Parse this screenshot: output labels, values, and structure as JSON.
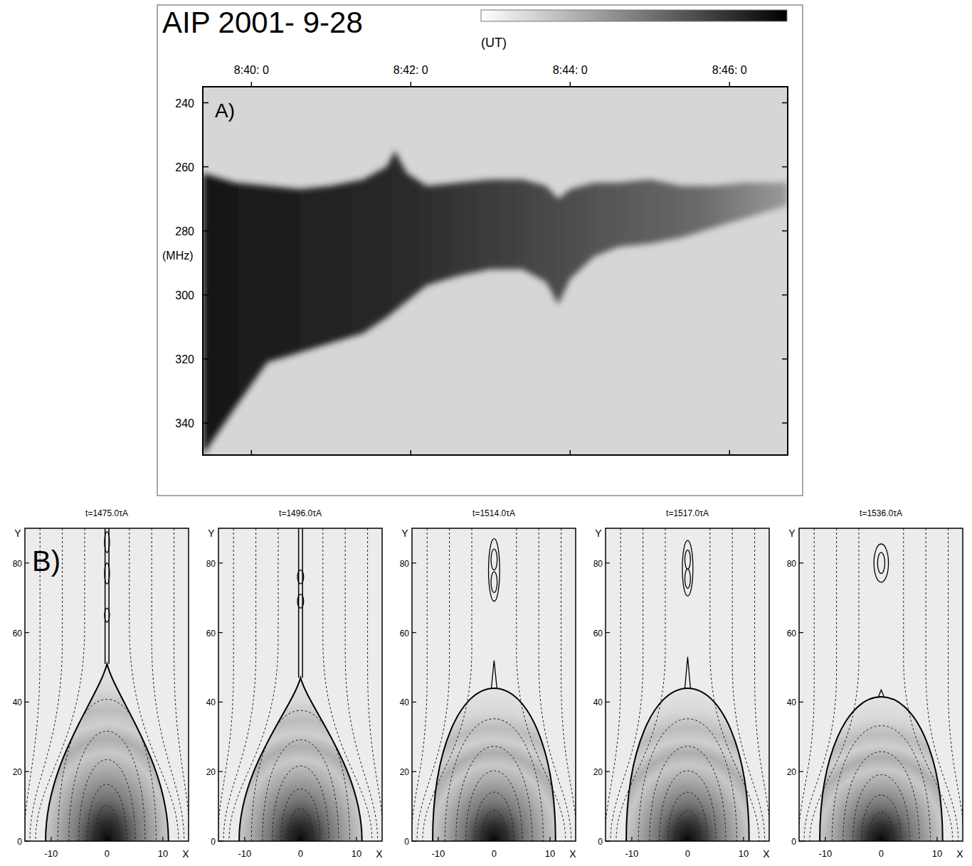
{
  "chart_data": [
    {
      "type": "spectrogram",
      "title": "AIP 2001- 9-28",
      "panel_label": "A)",
      "x_label": "(UT)",
      "y_label": "(MHz)",
      "xlim": [
        39.39,
        46.73
      ],
      "ylim": [
        235,
        350
      ],
      "xticks": [
        {
          "value": 40,
          "label": "8:40: 0"
        },
        {
          "value": 42,
          "label": "8:42: 0"
        },
        {
          "value": 44,
          "label": "8:44: 0"
        },
        {
          "value": 46,
          "label": "8:46: 0"
        }
      ],
      "yticks": [
        240,
        260,
        280,
        300,
        320,
        340
      ],
      "x": [
        39.39,
        39.8,
        40.2,
        40.6,
        41.0,
        41.4,
        41.7,
        41.8,
        41.95,
        42.2,
        42.6,
        43.0,
        43.4,
        43.7,
        43.85,
        44.0,
        44.3,
        44.6,
        45.0,
        45.4,
        45.8,
        46.2,
        46.73
      ],
      "band": {
        "low": [
          262,
          265,
          266,
          267,
          266,
          264,
          260,
          255,
          262,
          266,
          265,
          264,
          264,
          266,
          270,
          267,
          265,
          265,
          264,
          266,
          266,
          265,
          265
        ],
        "high": [
          350,
          335,
          321,
          318,
          315,
          312,
          307,
          305,
          302,
          297,
          294,
          292,
          292,
          296,
          303,
          295,
          288,
          285,
          284,
          282,
          279,
          276,
          272
        ]
      }
    },
    {
      "type": "contour",
      "title": "t=1475.0τA",
      "panel_label": "B)",
      "x_label": "X",
      "y_label": "Y",
      "xlim": [
        -14.7,
        14.6
      ],
      "ylim": [
        0,
        90
      ],
      "xticks": [
        -10,
        0,
        10
      ],
      "yticks": [
        0,
        20,
        40,
        60,
        80
      ],
      "footpoints": [
        -11,
        11
      ],
      "arch_top": 51,
      "xpoint_y": 51,
      "sheet_top": 90,
      "islands": [
        {
          "y": 86,
          "height": 6,
          "width": 0.9
        },
        {
          "y": 77,
          "height": 6,
          "width": 0.9
        },
        {
          "y": 65,
          "height": 4,
          "width": 0.9
        }
      ]
    },
    {
      "type": "contour",
      "title": "t=1496.0τA",
      "x_label": "X",
      "y_label": "Y",
      "xlim": [
        -14.7,
        14.6
      ],
      "ylim": [
        0,
        90
      ],
      "xticks": [
        -10,
        0,
        10
      ],
      "yticks": [
        0,
        20,
        40,
        60,
        80
      ],
      "footpoints": [
        -11,
        11
      ],
      "arch_top": 47,
      "xpoint_y": 47,
      "sheet_top": 90,
      "islands": [
        {
          "y": 76,
          "height": 4,
          "width": 1.1
        },
        {
          "y": 69,
          "height": 4,
          "width": 1.1
        }
      ]
    },
    {
      "type": "contour",
      "title": "t=1514.0τA",
      "x_label": "X",
      "y_label": "Y",
      "xlim": [
        -14.7,
        14.6
      ],
      "ylim": [
        0,
        90
      ],
      "xticks": [
        -10,
        0,
        10
      ],
      "yticks": [
        0,
        20,
        40,
        60,
        80
      ],
      "footpoints": [
        -11,
        11
      ],
      "arch_top": 44,
      "xpoint_y": 52,
      "sheet_top": null,
      "islands": [
        {
          "y": 78,
          "height": 18,
          "width": 2.0
        },
        {
          "y": 81,
          "height": 6,
          "width": 1.1
        },
        {
          "y": 74.5,
          "height": 6,
          "width": 1.1
        }
      ]
    },
    {
      "type": "contour",
      "title": "t=1517.0τA",
      "x_label": "X",
      "y_label": "Y",
      "xlim": [
        -14.7,
        14.6
      ],
      "ylim": [
        0,
        90
      ],
      "xticks": [
        -10,
        0,
        10
      ],
      "yticks": [
        0,
        20,
        40,
        60,
        80
      ],
      "footpoints": [
        -11,
        11
      ],
      "arch_top": 44,
      "xpoint_y": 53,
      "sheet_top": null,
      "islands": [
        {
          "y": 78.5,
          "height": 16,
          "width": 1.9
        },
        {
          "y": 81,
          "height": 5.5,
          "width": 1.0
        },
        {
          "y": 75.5,
          "height": 5.5,
          "width": 1.0
        }
      ]
    },
    {
      "type": "contour",
      "title": "t=1536.0τA",
      "x_label": "X",
      "y_label": "Y",
      "xlim": [
        -14.7,
        14.6
      ],
      "ylim": [
        0,
        90
      ],
      "xticks": [
        -10,
        0,
        10
      ],
      "yticks": [
        0,
        20,
        40,
        60,
        80
      ],
      "footpoints": [
        -11,
        11
      ],
      "arch_top": 41.5,
      "xpoint_y": 43.5,
      "sheet_top": null,
      "islands": [
        {
          "y": 80,
          "height": 11,
          "width": 2.6
        },
        {
          "y": 80,
          "height": 6,
          "width": 1.3
        }
      ]
    }
  ]
}
